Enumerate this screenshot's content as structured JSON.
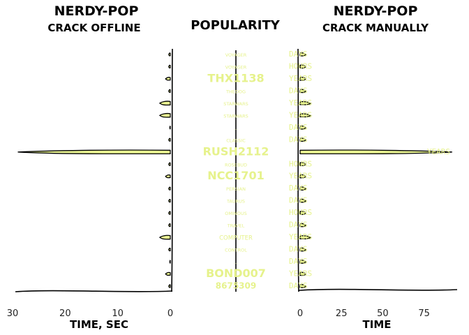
{
  "left_panel": {
    "title": "NERDY-POP",
    "subtitle": "CRACK OFFLINE",
    "xlabel": "TIME, SEC",
    "xticks": [
      30,
      20,
      10,
      0
    ]
  },
  "middle_panel": {
    "title": "POPULARITY"
  },
  "right_panel": {
    "title": "NERDY-POP",
    "subtitle": "CRACK MANUALLY",
    "xlabel": "TIME",
    "xticks": [
      0,
      25,
      50,
      75
    ]
  },
  "chart_data": [
    {
      "type": "bar",
      "panel": "crack-offline",
      "orientation": "horizontal",
      "direction": "reversed-x",
      "xlabel": "TIME, SEC",
      "xlim": [
        30,
        0
      ],
      "categories": [
        "VOYAGER",
        "VOYAGER",
        "THX1138",
        "THEDOG",
        "STARWARS",
        "STARWARS",
        "...",
        "CLASSIC",
        "RUSH2112",
        "ROSEBUD",
        "NCC1701",
        "PERSIAN",
        "TAURUS",
        "OMINOUS",
        "TRAVEL",
        "COMPUTER",
        "CONTROL",
        "...",
        "BOND007",
        "8675309"
      ],
      "values": [
        0.3,
        0.3,
        0.9,
        0.3,
        2.0,
        2.0,
        0.1,
        0.3,
        29.0,
        0.3,
        0.9,
        0.3,
        0.3,
        0.3,
        0.3,
        2.0,
        0.3,
        0.1,
        0.9,
        0.3
      ]
    },
    {
      "type": "bar",
      "panel": "crack-manually",
      "orientation": "horizontal",
      "xlabel": "TIME",
      "xlim": [
        0,
        95
      ],
      "categories": [
        "VOYAGER",
        "VOYAGER",
        "THX1138",
        "THEDOG",
        "STARWARS",
        "STARWARS",
        "...",
        "CLASSIC",
        "RUSH2112",
        "ROSEBUD",
        "NCC1701",
        "PERSIAN",
        "TAURUS",
        "OMINOUS",
        "TRAVEL",
        "COMPUTER",
        "CONTROL",
        "...",
        "BOND007",
        "8675309"
      ],
      "values": [
        3.5,
        3.5,
        3.5,
        3.5,
        6.5,
        6.5,
        3.5,
        3.5,
        92.0,
        3.5,
        3.5,
        3.5,
        3.5,
        3.5,
        3.5,
        6.5,
        3.5,
        3.5,
        3.5,
        3.5
      ],
      "labels": [
        "DAYS",
        "HOURS",
        "YEARS",
        "DAYS",
        "YEARS",
        "YEARS",
        "DAYS",
        "DAYS",
        "YEARS",
        "HOURS",
        "YEARS",
        "DAYS",
        "DAYS",
        "HOURS",
        "DAYS",
        "YEARS",
        "DAYS",
        "DAYS",
        "YEARS",
        "DAYS"
      ]
    },
    {
      "type": "bar",
      "panel": "popularity",
      "orientation": "horizontal",
      "style": "word-cloud-labels",
      "categories": [
        "VOYAGER",
        "VOYAGER",
        "THX1138",
        "THEDOG",
        "STARWARS",
        "STARWARS",
        "...",
        "CLASSIC",
        "RUSH2112",
        "ROSEBUD",
        "NCC1701",
        "PERSIAN",
        "TAURUS",
        "OMINOUS",
        "TRAVEL",
        "COMPUTER",
        "CONTROL",
        "...",
        "BOND007",
        "8675309"
      ],
      "values": [
        1,
        1,
        4,
        1,
        1,
        1,
        1,
        1,
        4,
        1,
        4,
        1,
        1,
        1,
        1,
        2,
        1,
        1,
        4,
        3
      ]
    }
  ]
}
